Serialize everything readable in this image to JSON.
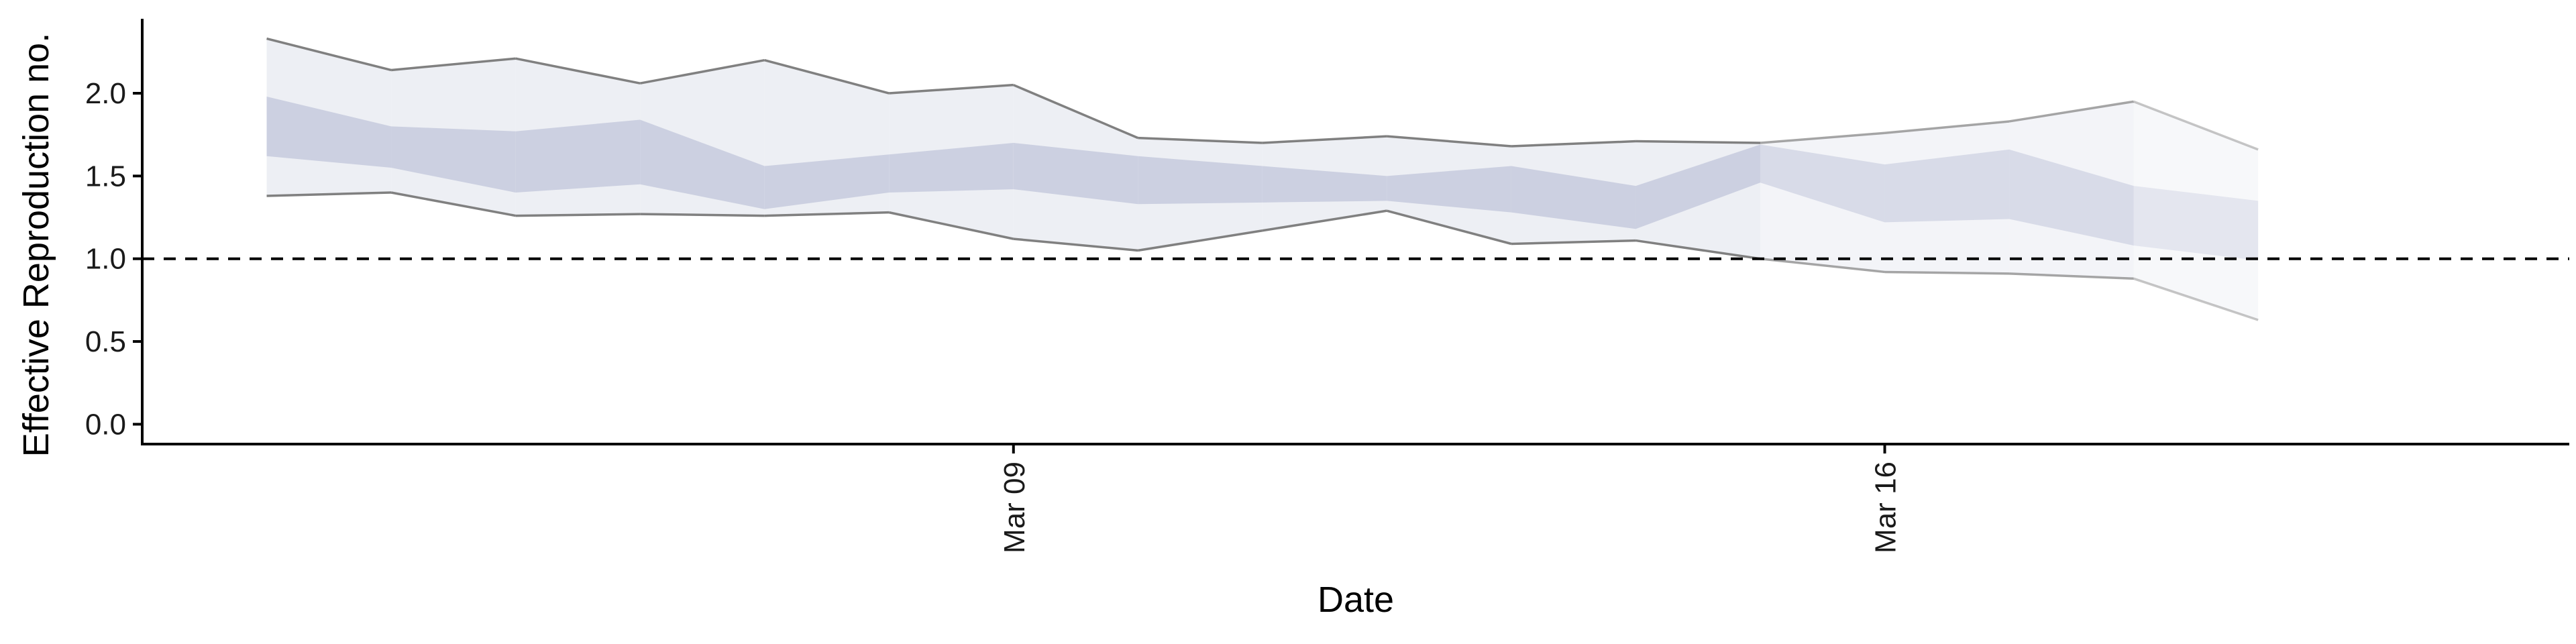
{
  "chart_data": {
    "type": "area",
    "xlabel": "Date",
    "ylabel": "Effective Reproduction no.",
    "x_ticks": [
      {
        "date": "2020-03-09",
        "label": "Mar 09"
      },
      {
        "date": "2020-03-16",
        "label": "Mar 16"
      }
    ],
    "y_ticks": [
      "0.0",
      "0.5",
      "1.0",
      "1.5",
      "2.0"
    ],
    "xlim": [
      "2020-03-02",
      "2020-03-21T12:00"
    ],
    "ylim": [
      -0.12,
      2.45
    ],
    "reference_line": 1.0,
    "grid": false,
    "legend": "none",
    "colors": {
      "outer_band": "#e6e8f0",
      "inner_band": "#c3c8dc",
      "bound_line": "#808080"
    },
    "series": [
      {
        "date": "2020-03-03",
        "lower_90": 1.38,
        "lower_50": 1.62,
        "upper_50": 1.98,
        "upper_90": 2.33,
        "estimate_type": "estimate"
      },
      {
        "date": "2020-03-04",
        "lower_90": 1.4,
        "lower_50": 1.55,
        "upper_50": 1.8,
        "upper_90": 2.14,
        "estimate_type": "estimate"
      },
      {
        "date": "2020-03-05",
        "lower_90": 1.26,
        "lower_50": 1.4,
        "upper_50": 1.77,
        "upper_90": 2.21,
        "estimate_type": "estimate"
      },
      {
        "date": "2020-03-06",
        "lower_90": 1.27,
        "lower_50": 1.45,
        "upper_50": 1.84,
        "upper_90": 2.06,
        "estimate_type": "estimate"
      },
      {
        "date": "2020-03-07",
        "lower_90": 1.26,
        "lower_50": 1.3,
        "upper_50": 1.56,
        "upper_90": 2.2,
        "estimate_type": "estimate"
      },
      {
        "date": "2020-03-08",
        "lower_90": 1.28,
        "lower_50": 1.4,
        "upper_50": 1.63,
        "upper_90": 2.0,
        "estimate_type": "estimate"
      },
      {
        "date": "2020-03-09",
        "lower_90": 1.12,
        "lower_50": 1.42,
        "upper_50": 1.7,
        "upper_90": 2.05,
        "estimate_type": "estimate"
      },
      {
        "date": "2020-03-10",
        "lower_90": 1.05,
        "lower_50": 1.33,
        "upper_50": 1.62,
        "upper_90": 1.73,
        "estimate_type": "estimate"
      },
      {
        "date": "2020-03-11",
        "lower_90": 1.17,
        "lower_50": 1.34,
        "upper_50": 1.56,
        "upper_90": 1.7,
        "estimate_type": "estimate"
      },
      {
        "date": "2020-03-12",
        "lower_90": 1.29,
        "lower_50": 1.35,
        "upper_50": 1.5,
        "upper_90": 1.74,
        "estimate_type": "estimate"
      },
      {
        "date": "2020-03-13",
        "lower_90": 1.09,
        "lower_50": 1.28,
        "upper_50": 1.56,
        "upper_90": 1.68,
        "estimate_type": "estimate"
      },
      {
        "date": "2020-03-14",
        "lower_90": 1.11,
        "lower_50": 1.18,
        "upper_50": 1.44,
        "upper_90": 1.71,
        "estimate_type": "estimate"
      },
      {
        "date": "2020-03-15",
        "lower_90": 1.0,
        "lower_50": 1.46,
        "upper_50": 1.69,
        "upper_90": 1.7,
        "estimate_type": "estimate based on partial data"
      },
      {
        "date": "2020-03-16",
        "lower_90": 0.92,
        "lower_50": 1.22,
        "upper_50": 1.57,
        "upper_90": 1.76,
        "estimate_type": "estimate based on partial data"
      },
      {
        "date": "2020-03-17",
        "lower_90": 0.91,
        "lower_50": 1.24,
        "upper_50": 1.66,
        "upper_90": 1.83,
        "estimate_type": "estimate based on partial data"
      },
      {
        "date": "2020-03-18",
        "lower_90": 0.88,
        "lower_50": 1.08,
        "upper_50": 1.44,
        "upper_90": 1.95,
        "estimate_type": "forecast"
      },
      {
        "date": "2020-03-19",
        "lower_90": 0.63,
        "lower_50": 0.99,
        "upper_50": 1.35,
        "upper_90": 1.66,
        "estimate_type": "forecast"
      }
    ]
  }
}
